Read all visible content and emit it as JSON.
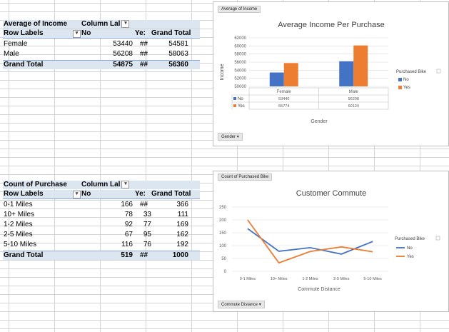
{
  "pivot1": {
    "header": [
      "Average of Income",
      "Column Lal"
    ],
    "row_labels_header": "Row Labels",
    "col_no": "No",
    "col_yes": "Ye:",
    "col_grand": "Grand Total",
    "rows": [
      {
        "label": "Female",
        "no": "53440",
        "yes": "##",
        "grand": "54581"
      },
      {
        "label": "Male",
        "no": "56208",
        "yes": "##",
        "grand": "58063"
      }
    ],
    "total": {
      "label": "Grand Total",
      "no": "54875",
      "yes": "##",
      "grand": "56360"
    }
  },
  "pivot2": {
    "header": [
      "Count of Purchase",
      "Column Lal"
    ],
    "row_labels_header": "Row Labels",
    "col_no": "No",
    "col_yes": "Ye:",
    "col_grand": "Grand Total",
    "rows": [
      {
        "label": "0-1 Miles",
        "no": "166",
        "yes": "##",
        "grand": "366"
      },
      {
        "label": "10+ Miles",
        "no": "78",
        "yes": "33",
        "grand": "111"
      },
      {
        "label": "1-2 Miles",
        "no": "92",
        "yes": "77",
        "grand": "169"
      },
      {
        "label": "2-5 Miles",
        "no": "67",
        "yes": "95",
        "grand": "162"
      },
      {
        "label": "5-10 Miles",
        "no": "116",
        "yes": "76",
        "grand": "192"
      }
    ],
    "total": {
      "label": "Grand Total",
      "no": "519",
      "yes": "##",
      "grand": "1000"
    }
  },
  "chart1": {
    "field_button": "Average of Income",
    "title": "Average Income Per Purchase",
    "ylabel": "Income",
    "xlabel": "Gender",
    "legend_title": "Purchased Bike",
    "filter_button": "Gender",
    "colors": {
      "No": "#4472c4",
      "Yes": "#ed7d31"
    },
    "chart_data": {
      "type": "bar",
      "categories": [
        "Female",
        "Male"
      ],
      "series": [
        {
          "name": "No",
          "values": [
            53440,
            56208
          ]
        },
        {
          "name": "Yes",
          "values": [
            55774,
            60124
          ]
        }
      ],
      "ylim": [
        50000,
        62000
      ],
      "yticks": [
        "50000",
        "52000",
        "54000",
        "56000",
        "58000",
        "60000",
        "62000"
      ],
      "table_values": {
        "No": [
          "53440",
          "56208"
        ],
        "Yes": [
          "55774",
          "60124"
        ]
      },
      "legend": [
        "No",
        "Yes"
      ]
    }
  },
  "chart2": {
    "field_button": "Count of Purchased Bike",
    "title": "Customer Commute",
    "xlabel": "Commute Distance",
    "legend_title": "Purchased Bike",
    "filter_button": "Commute Distance",
    "colors": {
      "No": "#4472c4",
      "Yes": "#ed7d31"
    },
    "chart_data": {
      "type": "line",
      "categories": [
        "0-1 Miles",
        "10+ Miles",
        "1-2 Miles",
        "2-5 Miles",
        "5-10 Miles"
      ],
      "series": [
        {
          "name": "No",
          "values": [
            166,
            78,
            92,
            67,
            116
          ]
        },
        {
          "name": "Yes",
          "values": [
            200,
            33,
            77,
            95,
            76
          ]
        }
      ],
      "ylim": [
        0,
        250
      ],
      "yticks": [
        "0",
        "50",
        "100",
        "150",
        "200",
        "250"
      ],
      "legend": [
        "No",
        "Yes"
      ]
    }
  }
}
